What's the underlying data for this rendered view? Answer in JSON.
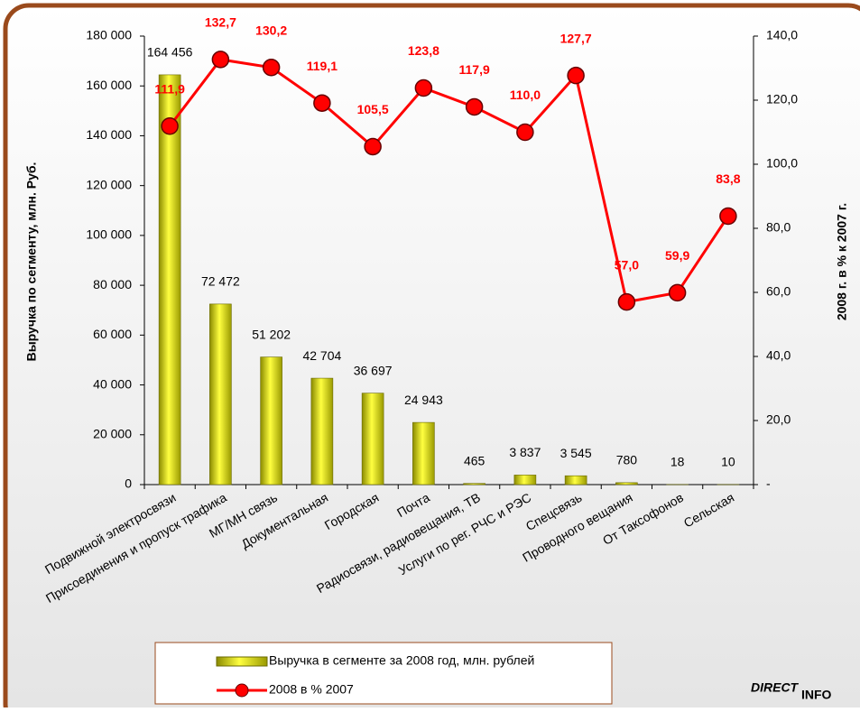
{
  "chart_data": {
    "type": "bar_line",
    "categories": [
      "Подвижной электросвязи",
      "Присоединения и пропуск трафика",
      "МГ/МН связь",
      "Документальная",
      "Городская",
      "Почта",
      "Радиосвязи, радиовещания, ТВ",
      "Услуги по рег. РЧС и РЭС",
      "Спецсвязь",
      "Проводного вещания",
      "От Таксофонов",
      "Сельская"
    ],
    "series": [
      {
        "name": "Выручка в сегменте за 2008 год, млн. рублей",
        "type": "bar",
        "color": "#e8e800",
        "values": [
          164456,
          72472,
          51202,
          42704,
          36697,
          24943,
          465,
          3837,
          3545,
          780,
          18,
          10
        ],
        "value_labels": [
          "164 456",
          "72 472",
          "51 202",
          "42 704",
          "36 697",
          "24 943",
          "465",
          "3 837",
          "3 545",
          "780",
          "18",
          "10"
        ]
      },
      {
        "name": "2008 в % 2007",
        "type": "line",
        "axis": "y2",
        "color": "#ff0000",
        "values": [
          111.9,
          132.7,
          130.2,
          119.1,
          105.5,
          123.8,
          117.9,
          110.0,
          127.7,
          57.0,
          59.9,
          83.8
        ],
        "value_labels": [
          "111,9",
          "132,7",
          "130,2",
          "119,1",
          "105,5",
          "123,8",
          "117,9",
          "110,0",
          "127,7",
          "57,0",
          "59,9",
          "83,8"
        ]
      }
    ],
    "y_label": "Выручка по сегменту, млн. Руб.",
    "y2_label": "2008 г. в % к 2007 г.",
    "ylim": [
      0,
      180000
    ],
    "yticks": [
      0,
      {
        "value": 20000,
        "label": "20 000"
      },
      {
        "value": 40000,
        "label": "40 000"
      },
      {
        "value": 60000,
        "label": "60 000"
      },
      {
        "value": 80000,
        "label": "80 000"
      },
      {
        "value": 100000,
        "label": "100 000"
      },
      {
        "value": 120000,
        "label": "120 000"
      },
      {
        "value": 140000,
        "label": "140 000"
      },
      {
        "value": 160000,
        "label": "160 000"
      },
      {
        "value": 180000,
        "label": "180 000"
      }
    ],
    "y2lim": [
      0,
      140
    ],
    "y2ticks": [
      {
        "value": 0,
        "label": "-"
      },
      {
        "value": 20,
        "label": "20,0"
      },
      {
        "value": 40,
        "label": "40,0"
      },
      {
        "value": 60,
        "label": "60,0"
      },
      {
        "value": 80,
        "label": "80,0"
      },
      {
        "value": 100,
        "label": "100,0"
      },
      {
        "value": 120,
        "label": "120,0"
      },
      {
        "value": 140,
        "label": "140,0"
      }
    ],
    "legend": "bottom",
    "annotations": [
      "DIRECT",
      "INFO"
    ]
  }
}
